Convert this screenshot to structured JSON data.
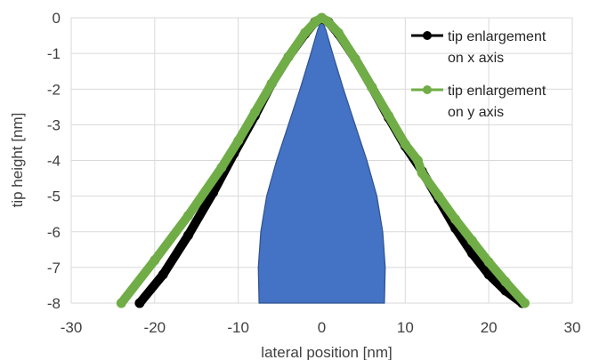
{
  "chart_data": {
    "type": "scatter",
    "title": "",
    "xlabel": "lateral position [nm]",
    "ylabel": "tip height [nm]",
    "xlim": [
      -30,
      30
    ],
    "ylim": [
      -8,
      0
    ],
    "x_ticks": [
      "-30",
      "-20",
      "-10",
      "0",
      "10",
      "20",
      "30"
    ],
    "y_ticks": [
      "0",
      "-1",
      "-2",
      "-3",
      "-4",
      "-5",
      "-6",
      "-7",
      "-8"
    ],
    "grid": true,
    "legend_position": "top-right",
    "series": [
      {
        "name": "tip enlargement on x axis",
        "color": "#000000",
        "x": [
          -21.8,
          -19,
          -16,
          -13,
          -10.5,
          -8,
          -6,
          -4,
          -2,
          -0.8,
          0,
          0.8,
          2,
          4,
          6,
          8,
          10,
          12,
          14,
          16,
          18,
          20,
          22,
          24
        ],
        "y": [
          -8,
          -7.2,
          -6.1,
          -4.9,
          -3.8,
          -2.75,
          -1.85,
          -1.1,
          -0.45,
          -0.12,
          -0.02,
          -0.12,
          -0.45,
          -1.15,
          -1.95,
          -2.8,
          -3.6,
          -4.3,
          -5.1,
          -5.9,
          -6.6,
          -7.2,
          -7.65,
          -8
        ]
      },
      {
        "name": "tip enlargement on y axis",
        "color": "#70ad47",
        "x": [
          -24,
          -20,
          -16,
          -12,
          -10,
          -8,
          -6,
          -4,
          -2,
          -0.7,
          0,
          0.7,
          2,
          4,
          6,
          8,
          10,
          11.5,
          12,
          14,
          16,
          18,
          20,
          22,
          24.3
        ],
        "y": [
          -8,
          -6.8,
          -5.55,
          -4.2,
          -3.45,
          -2.65,
          -1.85,
          -1.1,
          -0.42,
          -0.1,
          0,
          -0.1,
          -0.42,
          -1.15,
          -1.95,
          -2.75,
          -3.55,
          -4.0,
          -4.35,
          -5.0,
          -5.65,
          -6.25,
          -6.85,
          -7.4,
          -8
        ]
      }
    ],
    "tip_shape": {
      "color": "#4472c4",
      "outline": "#2f528f",
      "x": [
        -7.5,
        -7.6,
        -7.3,
        -6.6,
        -5.4,
        -4.0,
        -2.6,
        -1.3,
        -0.5,
        0,
        0.5,
        1.3,
        2.6,
        4.0,
        5.4,
        6.6,
        7.3,
        7.6,
        7.5
      ],
      "y": [
        -8,
        -7,
        -6,
        -5,
        -4,
        -3,
        -2,
        -1,
        -0.35,
        -0.05,
        -0.35,
        -1,
        -2,
        -3,
        -4,
        -5,
        -6,
        -7,
        -8
      ]
    }
  }
}
